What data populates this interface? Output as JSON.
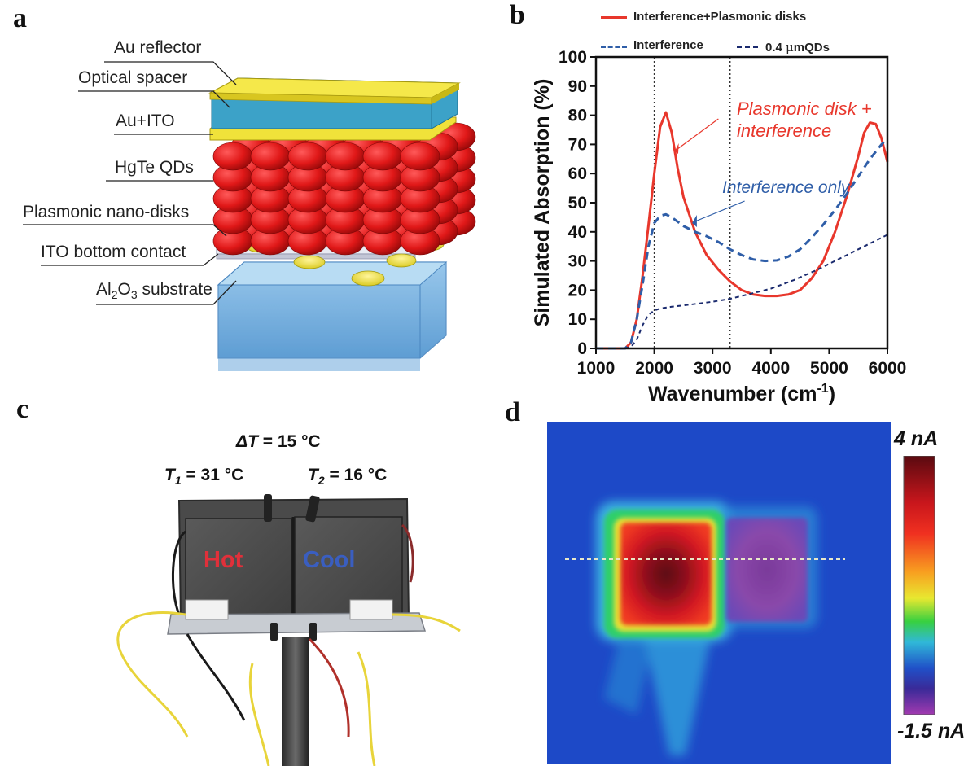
{
  "panels": {
    "a": {
      "letter": "a",
      "layers": [
        {
          "text": "Au reflector"
        },
        {
          "text": "Optical spacer"
        },
        {
          "text": "Au+ITO"
        },
        {
          "text": "HgTe QDs"
        },
        {
          "text": "Plasmonic nano-disks"
        },
        {
          "text": "ITO bottom contact"
        }
      ],
      "substrate": {
        "pre": "Al",
        "sub1": "2",
        "mid": "O",
        "sub2": "3",
        "post": " substrate"
      }
    },
    "b": {
      "letter": "b",
      "legend": {
        "s1": "Interference+Plasmonic disks",
        "s2": "Interference",
        "s3_pre": "0.4 ",
        "s3_mu": "μ",
        "s3_post": "mQDs"
      },
      "annotations": {
        "plasmonic_line1": "Plasmonic disk +",
        "plasmonic_line2": "interference",
        "interference_only": "Interference only"
      }
    },
    "c": {
      "letter": "c",
      "delta": {
        "symbol": "ΔT",
        "value": " = 15 °C"
      },
      "t1": {
        "symbol": "T",
        "sub": "1",
        "value": " = 31 °C"
      },
      "t2": {
        "symbol": "T",
        "sub": "2",
        "value": " = 16 °C"
      },
      "hot_label": "Hot",
      "cool_label": "Cool"
    },
    "d": {
      "letter": "d",
      "colorbar_max": "4 nA",
      "colorbar_min": "-1.5 nA"
    }
  },
  "chart_data": {
    "type": "line",
    "title": "",
    "xlabel": "Wavenumber (cm",
    "xlabel_sup": "-1",
    "xlabel_close": ")",
    "ylabel": "Simulated Absorption (%)",
    "xlim": [
      1000,
      6000
    ],
    "ylim": [
      0,
      100
    ],
    "xticks": [
      1000,
      2000,
      3000,
      4000,
      5000,
      6000
    ],
    "yticks": [
      0,
      10,
      20,
      30,
      40,
      50,
      60,
      70,
      80,
      90,
      100
    ],
    "vlines": [
      2000,
      3300
    ],
    "legend_position": "top",
    "series": [
      {
        "name": "Interference+Plasmonic disks",
        "color": "#e8372c",
        "style": "solid",
        "x": [
          1000,
          1500,
          1600,
          1700,
          1800,
          1900,
          2000,
          2100,
          2200,
          2300,
          2400,
          2500,
          2700,
          2900,
          3100,
          3300,
          3500,
          3700,
          3900,
          4100,
          4300,
          4500,
          4700,
          4900,
          5100,
          5300,
          5500,
          5600,
          5700,
          5800,
          5900,
          6000
        ],
        "y": [
          0,
          0,
          2,
          10,
          25,
          42,
          60,
          76,
          81,
          74,
          62,
          52,
          40,
          32,
          27,
          23,
          20,
          18.5,
          18,
          18,
          18.5,
          20,
          24,
          30,
          40,
          52,
          66,
          74,
          77.5,
          77,
          72,
          64
        ]
      },
      {
        "name": "Interference",
        "color": "#2f5ea8",
        "style": "dashed",
        "x": [
          1000,
          1500,
          1600,
          1700,
          1800,
          1900,
          2000,
          2100,
          2200,
          2300,
          2500,
          2700,
          2900,
          3100,
          3300,
          3500,
          3700,
          3900,
          4100,
          4300,
          4500,
          4700,
          4900,
          5100,
          5300,
          5500,
          5700,
          5900,
          6000
        ],
        "y": [
          0,
          0,
          2,
          10,
          22,
          35,
          43,
          45.5,
          46,
          45,
          42,
          40,
          38.5,
          36.5,
          34,
          32,
          30.5,
          30,
          30.2,
          31.5,
          34,
          38,
          42.5,
          47.5,
          53,
          59,
          65,
          70,
          72
        ]
      },
      {
        "name": "0.4 μmQDs",
        "color": "#1a2a6e",
        "style": "fine-dashed",
        "x": [
          1000,
          1500,
          1600,
          1700,
          1800,
          1900,
          2000,
          2100,
          2300,
          2600,
          3000,
          3300,
          3600,
          4000,
          4400,
          4800,
          5200,
          5600,
          6000
        ],
        "y": [
          0,
          0,
          0.5,
          3,
          8,
          11.5,
          13,
          13.7,
          14.3,
          15,
          16,
          17,
          18.5,
          20.5,
          23.5,
          27,
          31,
          35,
          39
        ]
      }
    ]
  }
}
